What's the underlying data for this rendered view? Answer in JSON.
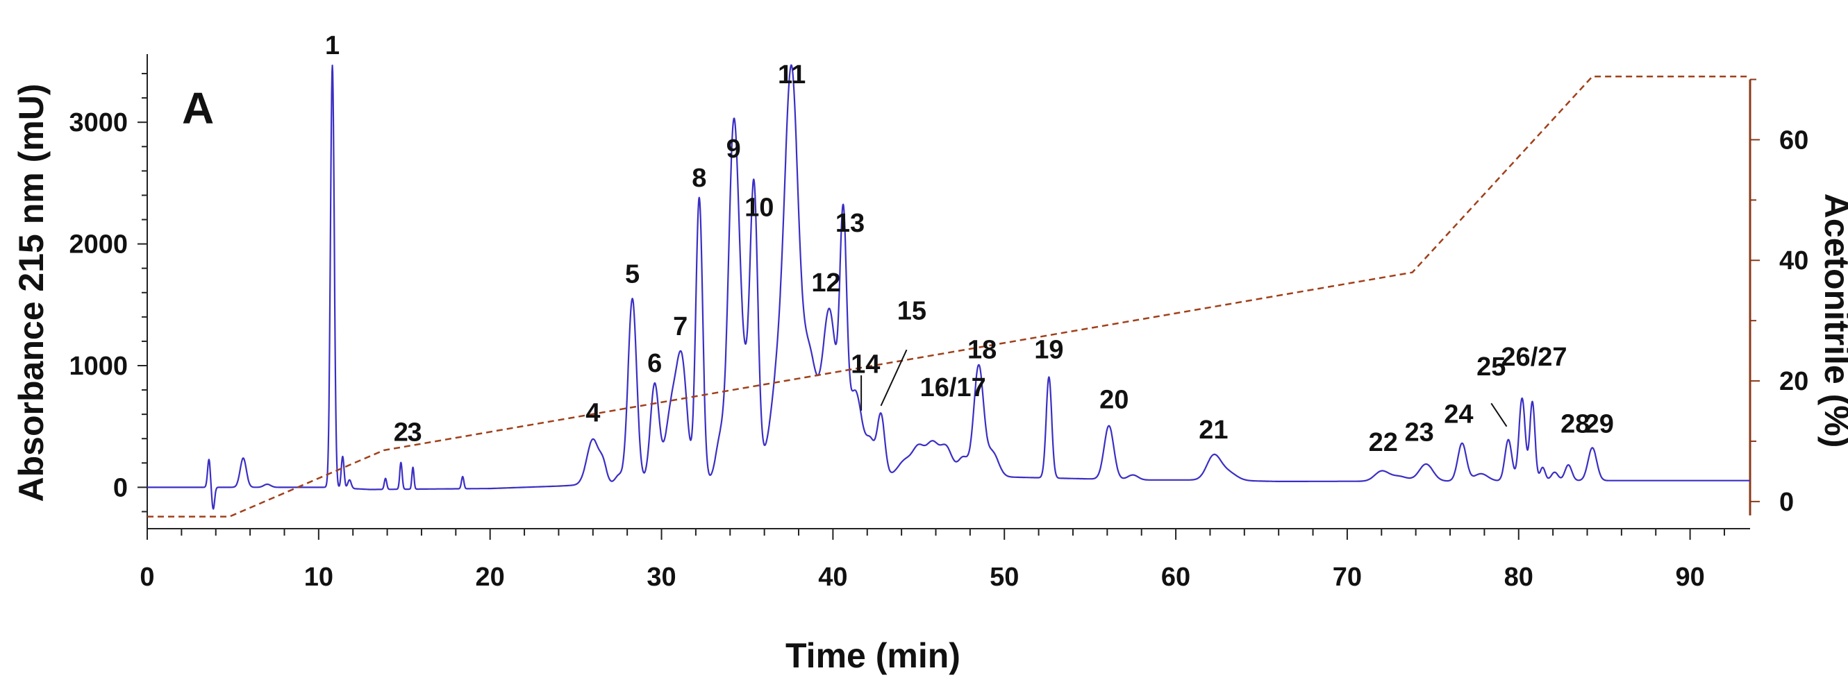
{
  "chart_data": {
    "type": "line",
    "panel_label": "A",
    "xlabel": "Time (min)",
    "ylabel": "Absorbance 215 nm (mU)",
    "y2label": "Acetonitrile (%)",
    "xlim": [
      0,
      93.5
    ],
    "ylim": [
      -340,
      3560
    ],
    "y2lim": [
      -4.5,
      74.2
    ],
    "x_ticks": [
      0,
      10,
      20,
      30,
      40,
      50,
      60,
      70,
      80,
      90
    ],
    "y_ticks": [
      0,
      1000,
      2000,
      3000
    ],
    "y2_ticks": [
      0,
      20,
      40,
      60
    ],
    "grid": false,
    "colors": {
      "absorbance": "#3a2fc4",
      "acetonitrile": "#a0401a",
      "right_axis": "#8a3a1a"
    },
    "series": [
      {
        "axis": "left",
        "baseline": [
          [
            0,
            0
          ],
          [
            10.5,
            0
          ],
          [
            13,
            -18
          ],
          [
            20,
            -10
          ],
          [
            24,
            10
          ],
          [
            28,
            40
          ],
          [
            35,
            70
          ],
          [
            40,
            90
          ],
          [
            46,
            100
          ],
          [
            50,
            85
          ],
          [
            54,
            72
          ],
          [
            58,
            60
          ],
          [
            62,
            60
          ],
          [
            66,
            48
          ],
          [
            72,
            50
          ],
          [
            80,
            52
          ],
          [
            84,
            55
          ],
          [
            93.5,
            55
          ]
        ],
        "peaks": [
          [
            3.6,
            230,
            0.08
          ],
          [
            3.85,
            -180,
            0.08
          ],
          [
            5.6,
            240,
            0.18
          ],
          [
            7.0,
            25,
            0.2
          ],
          [
            10.8,
            3470,
            0.11
          ],
          [
            11.4,
            260,
            0.08
          ],
          [
            11.8,
            70,
            0.1
          ],
          [
            13.9,
            90,
            0.07
          ],
          [
            14.8,
            220,
            0.07
          ],
          [
            15.5,
            180,
            0.06
          ],
          [
            18.4,
            100,
            0.07
          ],
          [
            26.0,
            370,
            0.35
          ],
          [
            26.6,
            130,
            0.2
          ],
          [
            27.5,
            60,
            0.2
          ],
          [
            28.3,
            1510,
            0.25
          ],
          [
            29.6,
            800,
            0.25
          ],
          [
            30.6,
            600,
            0.35
          ],
          [
            31.2,
            900,
            0.3
          ],
          [
            32.2,
            2320,
            0.2
          ],
          [
            33.4,
            300,
            0.25
          ],
          [
            34.2,
            2560,
            0.3
          ],
          [
            35.4,
            2050,
            0.22
          ],
          [
            34.8,
            800,
            0.5
          ],
          [
            37.6,
            2960,
            0.38
          ],
          [
            36.9,
            900,
            0.5
          ],
          [
            38.6,
            1000,
            0.45
          ],
          [
            39.8,
            1350,
            0.4
          ],
          [
            40.6,
            1900,
            0.2
          ],
          [
            41.3,
            700,
            0.4
          ],
          [
            42.2,
            250,
            0.25
          ],
          [
            42.8,
            500,
            0.22
          ],
          [
            44.2,
            120,
            0.4
          ],
          [
            45.0,
            220,
            0.35
          ],
          [
            45.8,
            250,
            0.35
          ],
          [
            46.6,
            230,
            0.35
          ],
          [
            47.6,
            150,
            0.3
          ],
          [
            48.5,
            900,
            0.28
          ],
          [
            49.3,
            200,
            0.35
          ],
          [
            52.6,
            830,
            0.16
          ],
          [
            56.1,
            440,
            0.28
          ],
          [
            57.5,
            40,
            0.3
          ],
          [
            62.2,
            190,
            0.4
          ],
          [
            63.0,
            70,
            0.5
          ],
          [
            72.0,
            80,
            0.4
          ],
          [
            73.0,
            40,
            0.5
          ],
          [
            74.6,
            140,
            0.4
          ],
          [
            76.7,
            310,
            0.25
          ],
          [
            77.8,
            60,
            0.4
          ],
          [
            79.4,
            340,
            0.2
          ],
          [
            80.2,
            680,
            0.18
          ],
          [
            80.8,
            650,
            0.15
          ],
          [
            81.4,
            110,
            0.15
          ],
          [
            82.1,
            70,
            0.2
          ],
          [
            82.9,
            130,
            0.2
          ],
          [
            84.3,
            270,
            0.25
          ]
        ]
      },
      {
        "axis": "right",
        "dashed": true,
        "x": [
          0,
          4.8,
          13.8,
          73.8,
          84.3,
          93.5
        ],
        "y": [
          -2.5,
          -2.5,
          8.5,
          38,
          70.5,
          70.5
        ]
      }
    ],
    "peak_labels": [
      {
        "text": "1",
        "x": 10.8,
        "y": 3560
      },
      {
        "text": "2",
        "x": 14.8,
        "y": 380
      },
      {
        "text": "3",
        "x": 15.6,
        "y": 380
      },
      {
        "text": "4",
        "x": 26.0,
        "y": 540
      },
      {
        "text": "5",
        "x": 28.3,
        "y": 1680
      },
      {
        "text": "6",
        "x": 29.6,
        "y": 950
      },
      {
        "text": "7",
        "x": 31.1,
        "y": 1250
      },
      {
        "text": "8",
        "x": 32.2,
        "y": 2470
      },
      {
        "text": "9",
        "x": 34.2,
        "y": 2710
      },
      {
        "text": "10",
        "x": 35.7,
        "y": 2230
      },
      {
        "text": "11",
        "x": 37.6,
        "y": 3320
      },
      {
        "text": "12",
        "x": 39.6,
        "y": 1610
      },
      {
        "text": "13",
        "x": 41.0,
        "y": 2100
      },
      {
        "text": "14",
        "x": 41.9,
        "y": 940
      },
      {
        "text": "15",
        "x": 44.6,
        "y": 1380
      },
      {
        "text": "16/17",
        "x": 47.0,
        "y": 750
      },
      {
        "text": "18",
        "x": 48.7,
        "y": 1060
      },
      {
        "text": "19",
        "x": 52.6,
        "y": 1060
      },
      {
        "text": "20",
        "x": 56.4,
        "y": 650
      },
      {
        "text": "21",
        "x": 62.2,
        "y": 400
      },
      {
        "text": "22",
        "x": 72.1,
        "y": 300
      },
      {
        "text": "23",
        "x": 74.2,
        "y": 380
      },
      {
        "text": "24",
        "x": 76.5,
        "y": 530
      },
      {
        "text": "25",
        "x": 78.4,
        "y": 920
      },
      {
        "text": "26/27",
        "x": 80.9,
        "y": 1000
      },
      {
        "text": "28",
        "x": 83.3,
        "y": 450
      },
      {
        "text": "29",
        "x": 84.7,
        "y": 450
      }
    ],
    "leader_lines": [
      {
        "from": [
          41.65,
          920
        ],
        "to": [
          41.65,
          630
        ]
      },
      {
        "from": [
          44.3,
          1130
        ],
        "to": [
          42.8,
          670
        ]
      },
      {
        "from": [
          78.4,
          690
        ],
        "to": [
          79.3,
          500
        ]
      }
    ]
  }
}
